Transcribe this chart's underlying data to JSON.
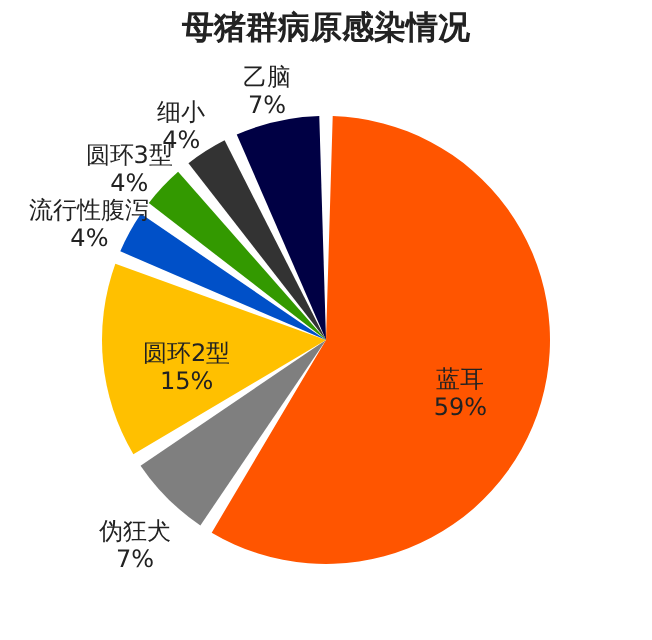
{
  "chart_data": {
    "type": "pie",
    "title": "母猪群病原感染情况",
    "categories": [
      "蓝耳",
      "伪狂犬",
      "圆环2型",
      "流行性腹泻",
      "圆环3型",
      "细小",
      "乙脑"
    ],
    "values": [
      59,
      7,
      15,
      4,
      4,
      4,
      7
    ],
    "value_labels": [
      "59%",
      "7%",
      "15%",
      "4%",
      "4%",
      "4%",
      "7%"
    ],
    "colors": [
      "#ff5500",
      "#7f7f7f",
      "#ffc000",
      "#0050c8",
      "#339900",
      "#333333",
      "#000044"
    ],
    "legend": false
  }
}
